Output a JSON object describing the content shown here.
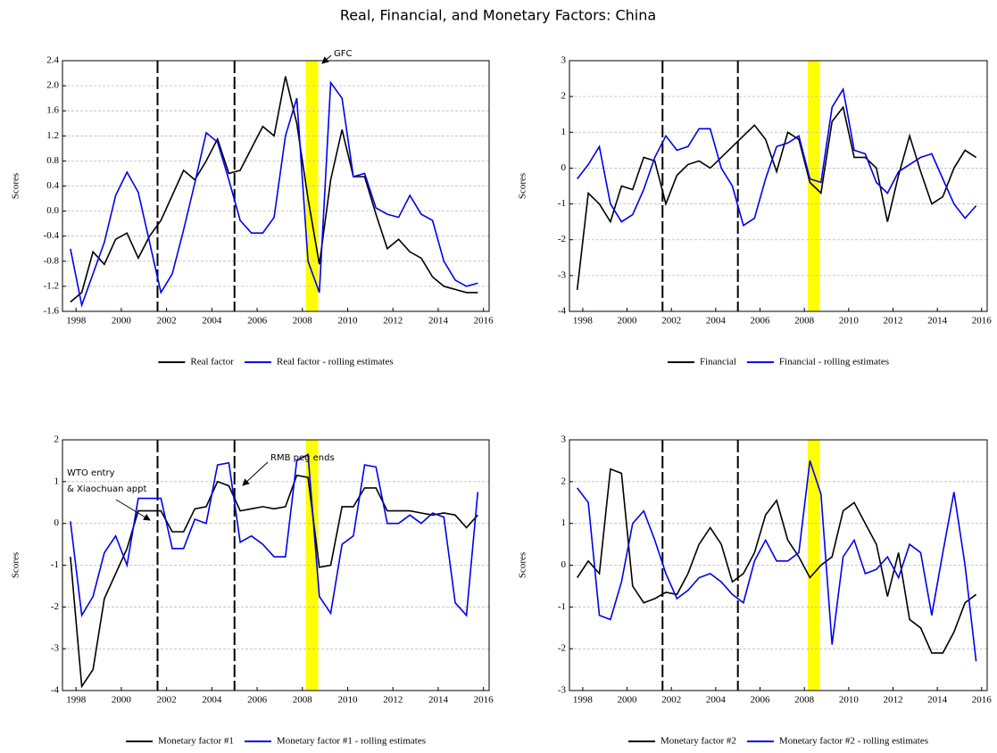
{
  "title": "Real, Financial, and Monetary Factors: China",
  "chart_data": [
    {
      "type": "line",
      "ylabel": "Scores",
      "grid": true,
      "x": [
        1997.75,
        1998.25,
        1998.75,
        1999.25,
        1999.75,
        2000.25,
        2000.75,
        2001.25,
        2001.75,
        2002.25,
        2002.75,
        2003.25,
        2003.75,
        2004.25,
        2004.75,
        2005.25,
        2005.75,
        2006.25,
        2006.75,
        2007.25,
        2007.75,
        2008.25,
        2008.75,
        2009.25,
        2009.75,
        2010.25,
        2010.75,
        2011.25,
        2011.75,
        2012.25,
        2012.75,
        2013.25,
        2013.75,
        2014.25,
        2014.75,
        2015.25,
        2015.75
      ],
      "series": [
        {
          "name": "Real factor",
          "color": "#000000",
          "values": [
            -1.45,
            -1.3,
            -0.65,
            -0.85,
            -0.45,
            -0.35,
            -0.75,
            -0.4,
            -0.15,
            0.25,
            0.65,
            0.5,
            0.8,
            1.15,
            0.6,
            0.65,
            1.0,
            1.35,
            1.2,
            2.15,
            1.4,
            0.2,
            -0.85,
            0.5,
            1.3,
            0.55,
            0.55,
            -0.05,
            -0.6,
            -0.45,
            -0.65,
            -0.75,
            -1.05,
            -1.2,
            -1.25,
            -1.3,
            -1.3
          ]
        },
        {
          "name": "Real factor - rolling estimates",
          "color": "#0000ee",
          "values": [
            -0.6,
            -1.5,
            -1.0,
            -0.5,
            0.25,
            0.62,
            0.3,
            -0.5,
            -1.3,
            -1.0,
            -0.3,
            0.45,
            1.25,
            1.1,
            0.5,
            -0.15,
            -0.35,
            -0.35,
            -0.1,
            1.2,
            1.8,
            -0.8,
            -1.3,
            2.05,
            1.8,
            0.55,
            0.6,
            0.05,
            -0.05,
            -0.1,
            0.25,
            -0.05,
            -0.15,
            -0.8,
            -1.1,
            -1.2,
            -1.15
          ]
        }
      ],
      "xlim": [
        1997.4,
        2016.25
      ],
      "xticks": [
        1998,
        2000,
        2002,
        2004,
        2006,
        2008,
        2010,
        2012,
        2014,
        2016
      ],
      "ylim": [
        -1.6,
        2.4
      ],
      "yticks": [
        -1.6,
        -1.2,
        -0.8,
        -0.4,
        {
          "value": 0,
          "label": "0.0"
        },
        0.4,
        0.8,
        1.2,
        1.6,
        {
          "value": 2,
          "label": "2.0"
        },
        2.4
      ],
      "vlines": [
        2001.6,
        2005.0
      ],
      "shade": [
        2008.15,
        2008.7
      ],
      "shade_color": "#ffff00",
      "annotations": [
        "GFC"
      ]
    },
    {
      "type": "line",
      "ylabel": "Scores",
      "grid": true,
      "x": [
        1997.75,
        1998.25,
        1998.75,
        1999.25,
        1999.75,
        2000.25,
        2000.75,
        2001.25,
        2001.75,
        2002.25,
        2002.75,
        2003.25,
        2003.75,
        2004.25,
        2004.75,
        2005.25,
        2005.75,
        2006.25,
        2006.75,
        2007.25,
        2007.75,
        2008.25,
        2008.75,
        2009.25,
        2009.75,
        2010.25,
        2010.75,
        2011.25,
        2011.75,
        2012.25,
        2012.75,
        2013.25,
        2013.75,
        2014.25,
        2014.75,
        2015.25,
        2015.75
      ],
      "series": [
        {
          "name": "Financial",
          "color": "#000000",
          "values": [
            -3.4,
            -0.7,
            -1.0,
            -1.5,
            -0.5,
            -0.6,
            0.3,
            0.2,
            -1.0,
            -0.2,
            0.1,
            0.2,
            0.0,
            0.3,
            0.6,
            0.9,
            1.2,
            0.8,
            -0.1,
            1.0,
            0.8,
            -0.4,
            -0.7,
            1.3,
            1.7,
            0.3,
            0.3,
            0.0,
            -1.5,
            -0.2,
            0.9,
            -0.1,
            -1.0,
            -0.8,
            0.0,
            0.5,
            0.3
          ]
        },
        {
          "name": "Financial - rolling estimates",
          "color": "#0000ee",
          "values": [
            -0.3,
            0.1,
            0.6,
            -1.0,
            -1.5,
            -1.3,
            -0.6,
            0.3,
            0.9,
            0.5,
            0.6,
            1.1,
            1.1,
            0.0,
            -0.5,
            -1.6,
            -1.4,
            -0.3,
            0.6,
            0.7,
            0.9,
            -0.3,
            -0.4,
            1.7,
            2.2,
            0.5,
            0.4,
            -0.4,
            -0.7,
            -0.1,
            0.1,
            0.3,
            0.4,
            -0.3,
            -1.0,
            -1.4,
            -1.05
          ]
        }
      ],
      "xlim": [
        1997.4,
        2016.25
      ],
      "xticks": [
        1998,
        2000,
        2002,
        2004,
        2006,
        2008,
        2010,
        2012,
        2014,
        2016
      ],
      "ylim": [
        -4,
        3
      ],
      "yticks": [
        -4,
        -3,
        -2,
        -1,
        0,
        1,
        2,
        3
      ],
      "vlines": [
        2001.6,
        2005.0
      ],
      "shade": [
        2008.15,
        2008.7
      ],
      "shade_color": "#ffff00",
      "annotations": []
    },
    {
      "type": "line",
      "ylabel": "Scores",
      "grid": true,
      "x": [
        1997.75,
        1998.25,
        1998.75,
        1999.25,
        1999.75,
        2000.25,
        2000.75,
        2001.25,
        2001.75,
        2002.25,
        2002.75,
        2003.25,
        2003.75,
        2004.25,
        2004.75,
        2005.25,
        2005.75,
        2006.25,
        2006.75,
        2007.25,
        2007.75,
        2008.25,
        2008.75,
        2009.25,
        2009.75,
        2010.25,
        2010.75,
        2011.25,
        2011.75,
        2012.25,
        2012.75,
        2013.25,
        2013.75,
        2014.25,
        2014.75,
        2015.25,
        2015.75
      ],
      "series": [
        {
          "name": "Monetary factor #1",
          "color": "#000000",
          "values": [
            -0.8,
            -3.9,
            -3.5,
            -1.8,
            -1.2,
            -0.6,
            0.3,
            0.3,
            0.3,
            -0.2,
            -0.2,
            0.35,
            0.4,
            1.0,
            0.9,
            0.3,
            0.35,
            0.4,
            0.35,
            0.4,
            1.15,
            1.1,
            -1.05,
            -1.0,
            0.4,
            0.4,
            0.85,
            0.85,
            0.3,
            0.3,
            0.3,
            0.25,
            0.2,
            0.25,
            0.2,
            -0.1,
            0.2
          ]
        },
        {
          "name": "Monetary factor #1 - rolling estimates",
          "color": "#0000ee",
          "values": [
            0.05,
            -2.2,
            -1.75,
            -0.7,
            -0.3,
            -1.0,
            0.6,
            0.6,
            0.6,
            -0.6,
            -0.6,
            0.1,
            0.0,
            1.4,
            1.45,
            -0.45,
            -0.3,
            -0.5,
            -0.8,
            -0.8,
            1.5,
            1.65,
            -1.75,
            -2.15,
            -0.5,
            -0.3,
            1.4,
            1.35,
            0.0,
            0.0,
            0.2,
            0.0,
            0.25,
            0.15,
            -1.9,
            -2.2,
            0.75
          ]
        }
      ],
      "xlim": [
        1997.4,
        2016.25
      ],
      "xticks": [
        1998,
        2000,
        2002,
        2004,
        2006,
        2008,
        2010,
        2012,
        2014,
        2016
      ],
      "ylim": [
        -4,
        2
      ],
      "yticks": [
        -4,
        -3,
        -2,
        -1,
        0,
        1,
        2
      ],
      "vlines": [
        2001.6,
        2005.0
      ],
      "shade": [
        2008.15,
        2008.7
      ],
      "shade_color": "#ffff00",
      "annotations": [
        "WTO entry",
        "& Xiaochuan appt",
        "RMB peg ends"
      ]
    },
    {
      "type": "line",
      "ylabel": "Scores",
      "grid": true,
      "x": [
        1997.75,
        1998.25,
        1998.75,
        1999.25,
        1999.75,
        2000.25,
        2000.75,
        2001.25,
        2001.75,
        2002.25,
        2002.75,
        2003.25,
        2003.75,
        2004.25,
        2004.75,
        2005.25,
        2005.75,
        2006.25,
        2006.75,
        2007.25,
        2007.75,
        2008.25,
        2008.75,
        2009.25,
        2009.75,
        2010.25,
        2010.75,
        2011.25,
        2011.75,
        2012.25,
        2012.75,
        2013.25,
        2013.75,
        2014.25,
        2014.75,
        2015.25,
        2015.75
      ],
      "series": [
        {
          "name": "Monetary factor #2",
          "color": "#000000",
          "values": [
            -0.3,
            0.1,
            -0.2,
            2.3,
            2.2,
            -0.5,
            -0.9,
            -0.8,
            -0.65,
            -0.7,
            -0.2,
            0.5,
            0.9,
            0.5,
            -0.4,
            -0.2,
            0.3,
            1.2,
            1.55,
            0.6,
            0.2,
            -0.3,
            0.0,
            0.2,
            1.3,
            1.5,
            1.0,
            0.5,
            -0.75,
            0.3,
            -1.3,
            -1.5,
            -2.1,
            -2.1,
            -1.6,
            -0.9,
            -0.7
          ]
        },
        {
          "name": "Monetary factor #2 - rolling estimates",
          "color": "#0000ee",
          "values": [
            1.85,
            1.5,
            -1.2,
            -1.3,
            -0.4,
            1.0,
            1.3,
            0.6,
            -0.2,
            -0.8,
            -0.6,
            -0.3,
            -0.2,
            -0.4,
            -0.7,
            -0.9,
            0.1,
            0.6,
            0.1,
            0.1,
            0.3,
            2.5,
            1.7,
            -1.9,
            0.2,
            0.6,
            -0.2,
            -0.1,
            0.2,
            -0.3,
            0.5,
            0.3,
            -1.2,
            0.3,
            1.75,
            0.0,
            -2.3
          ]
        }
      ],
      "xlim": [
        1997.4,
        2016.25
      ],
      "xticks": [
        1998,
        2000,
        2002,
        2004,
        2006,
        2008,
        2010,
        2012,
        2014,
        2016
      ],
      "ylim": [
        -3,
        3
      ],
      "yticks": [
        -3,
        -2,
        -1,
        0,
        1,
        2,
        3
      ],
      "vlines": [
        2001.6,
        2005.0
      ],
      "shade": [
        2008.15,
        2008.7
      ],
      "shade_color": "#ffff00",
      "annotations": []
    }
  ]
}
